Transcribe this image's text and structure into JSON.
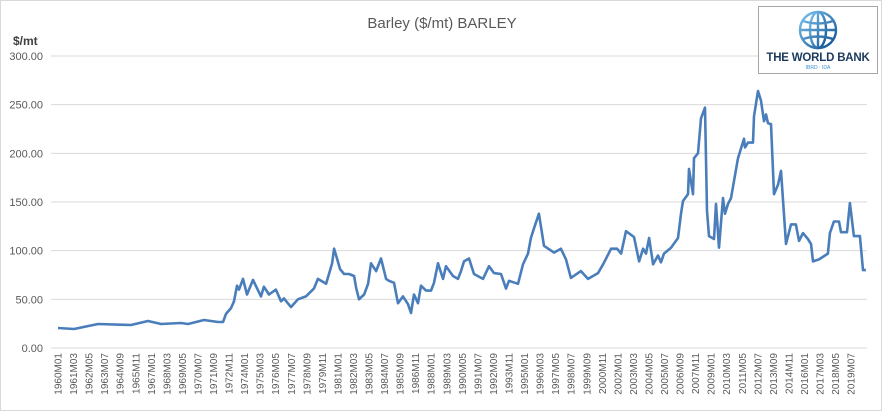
{
  "chart_data": {
    "type": "line",
    "title": "Barley ($/mt) BARLEY",
    "ylabel": "$/mt",
    "xlabel": "",
    "ylim": [
      0,
      300
    ],
    "y_ticks": [
      "0.00",
      "50.00",
      "100.00",
      "150.00",
      "200.00",
      "250.00",
      "300.00"
    ],
    "y_tick_values": [
      0,
      50,
      100,
      150,
      200,
      250,
      300
    ],
    "grid": "horizontal",
    "legend": "none",
    "line_color": "#4a7ebb",
    "x_tick_labels": [
      "1960M01",
      "1961M03",
      "1962M05",
      "1963M07",
      "1964M09",
      "1965M11",
      "1967M01",
      "1968M03",
      "1969M05",
      "1970M07",
      "1971M09",
      "1972M11",
      "1974M01",
      "1975M03",
      "1976M05",
      "1977M07",
      "1978M09",
      "1979M11",
      "1981M01",
      "1982M03",
      "1983M05",
      "1984M07",
      "1985M09",
      "1986M11",
      "1988M01",
      "1989M03",
      "1990M05",
      "1991M07",
      "1992M09",
      "1993M11",
      "1995M01",
      "1996M03",
      "1997M05",
      "1998M07",
      "1999M09",
      "2000M11",
      "2002M01",
      "2003M03",
      "2004M05",
      "2005M07",
      "2006M09",
      "2007M11",
      "2009M01",
      "2010M03",
      "2011M05",
      "2012M07",
      "2013M09",
      "2014M11",
      "2016M01",
      "2017M03",
      "2018M05",
      "2019M07"
    ],
    "series_points_year_value": [
      [
        1960.0,
        20.5
      ],
      [
        1961.2,
        19.5
      ],
      [
        1963.0,
        24.7
      ],
      [
        1965.48,
        23.6
      ],
      [
        1966.75,
        27.7
      ],
      [
        1967.73,
        24.7
      ],
      [
        1969.23,
        25.7
      ],
      [
        1969.75,
        24.7
      ],
      [
        1970.95,
        28.8
      ],
      [
        1972.0,
        26.7
      ],
      [
        1972.38,
        26.7
      ],
      [
        1972.6,
        35
      ],
      [
        1972.98,
        41
      ],
      [
        1973.2,
        48
      ],
      [
        1973.43,
        64
      ],
      [
        1973.58,
        60
      ],
      [
        1973.88,
        71
      ],
      [
        1974.18,
        55
      ],
      [
        1974.63,
        70
      ],
      [
        1975.23,
        53
      ],
      [
        1975.45,
        63
      ],
      [
        1975.83,
        55
      ],
      [
        1976.35,
        60
      ],
      [
        1976.73,
        48
      ],
      [
        1976.95,
        51
      ],
      [
        1977.48,
        42
      ],
      [
        1978.0,
        50
      ],
      [
        1978.6,
        53
      ],
      [
        1979.2,
        61
      ],
      [
        1979.5,
        71
      ],
      [
        1980.11,
        66
      ],
      [
        1980.33,
        76
      ],
      [
        1980.56,
        87
      ],
      [
        1980.71,
        102
      ],
      [
        1980.93,
        92
      ],
      [
        1981.16,
        81
      ],
      [
        1981.46,
        76
      ],
      [
        1981.83,
        76
      ],
      [
        1982.21,
        74
      ],
      [
        1982.36,
        62
      ],
      [
        1982.58,
        50
      ],
      [
        1982.96,
        55
      ],
      [
        1983.26,
        66
      ],
      [
        1983.48,
        87
      ],
      [
        1983.86,
        79
      ],
      [
        1984.23,
        92
      ],
      [
        1984.61,
        71
      ],
      [
        1984.83,
        69
      ],
      [
        1985.21,
        67
      ],
      [
        1985.51,
        46
      ],
      [
        1985.88,
        53
      ],
      [
        1986.26,
        45
      ],
      [
        1986.48,
        36
      ],
      [
        1986.71,
        55
      ],
      [
        1987.01,
        46
      ],
      [
        1987.23,
        64
      ],
      [
        1987.61,
        59
      ],
      [
        1987.98,
        59
      ],
      [
        1988.21,
        67
      ],
      [
        1988.51,
        87
      ],
      [
        1988.88,
        71
      ],
      [
        1989.11,
        84
      ],
      [
        1989.63,
        74
      ],
      [
        1990.01,
        71
      ],
      [
        1990.23,
        79
      ],
      [
        1990.46,
        89
      ],
      [
        1990.83,
        92
      ],
      [
        1991.21,
        76
      ],
      [
        1991.88,
        71
      ],
      [
        1992.33,
        84
      ],
      [
        1992.71,
        77
      ],
      [
        1993.23,
        76
      ],
      [
        1993.61,
        61
      ],
      [
        1993.83,
        69
      ],
      [
        1994.51,
        66
      ],
      [
        1994.88,
        86
      ],
      [
        1995.26,
        97
      ],
      [
        1995.48,
        113
      ],
      [
        1995.71,
        123
      ],
      [
        1996.08,
        138
      ],
      [
        1996.46,
        105
      ],
      [
        1997.21,
        98
      ],
      [
        1997.73,
        102
      ],
      [
        1998.11,
        91
      ],
      [
        1998.48,
        72
      ],
      [
        1999.23,
        79
      ],
      [
        1999.76,
        71
      ],
      [
        2000.51,
        77
      ],
      [
        2000.89,
        86
      ],
      [
        2001.49,
        102
      ],
      [
        2001.94,
        102
      ],
      [
        2002.24,
        97
      ],
      [
        2002.61,
        120
      ],
      [
        2003.21,
        114
      ],
      [
        2003.59,
        89
      ],
      [
        2003.89,
        102
      ],
      [
        2004.11,
        97
      ],
      [
        2004.34,
        113
      ],
      [
        2004.64,
        86
      ],
      [
        2005.01,
        95
      ],
      [
        2005.24,
        88
      ],
      [
        2005.46,
        97
      ],
      [
        2005.99,
        103
      ],
      [
        2006.51,
        113
      ],
      [
        2006.74,
        138
      ],
      [
        2006.89,
        151
      ],
      [
        2007.26,
        158
      ],
      [
        2007.34,
        184
      ],
      [
        2007.64,
        158
      ],
      [
        2007.71,
        195
      ],
      [
        2008.01,
        200
      ],
      [
        2008.24,
        236
      ],
      [
        2008.54,
        247
      ],
      [
        2008.69,
        141
      ],
      [
        2008.84,
        115
      ],
      [
        2009.21,
        112
      ],
      [
        2009.36,
        148
      ],
      [
        2009.59,
        103
      ],
      [
        2009.89,
        154
      ],
      [
        2010.04,
        138
      ],
      [
        2010.26,
        148
      ],
      [
        2010.49,
        154
      ],
      [
        2011.01,
        195
      ],
      [
        2011.46,
        215
      ],
      [
        2011.54,
        206
      ],
      [
        2011.76,
        211
      ],
      [
        2012.14,
        211
      ],
      [
        2012.21,
        238
      ],
      [
        2012.51,
        264
      ],
      [
        2012.74,
        254
      ],
      [
        2012.96,
        233
      ],
      [
        2013.11,
        240
      ],
      [
        2013.26,
        231
      ],
      [
        2013.49,
        230
      ],
      [
        2013.71,
        158
      ],
      [
        2014.02,
        168
      ],
      [
        2014.24,
        182
      ],
      [
        2014.61,
        107
      ],
      [
        2014.99,
        127
      ],
      [
        2015.36,
        127
      ],
      [
        2015.59,
        110
      ],
      [
        2015.89,
        118
      ],
      [
        2016.26,
        112
      ],
      [
        2016.49,
        107
      ],
      [
        2016.64,
        89
      ],
      [
        2017.09,
        91
      ],
      [
        2017.76,
        97
      ],
      [
        2017.91,
        118
      ],
      [
        2018.21,
        130
      ],
      [
        2018.59,
        130
      ],
      [
        2018.74,
        119
      ],
      [
        2019.19,
        119
      ],
      [
        2019.41,
        149
      ],
      [
        2019.71,
        115
      ],
      [
        2020.16,
        115
      ],
      [
        2020.39,
        80
      ],
      [
        2020.61,
        80
      ]
    ]
  },
  "logo": {
    "name": "THE WORLD BANK",
    "sub": "IBRD · IDA"
  }
}
